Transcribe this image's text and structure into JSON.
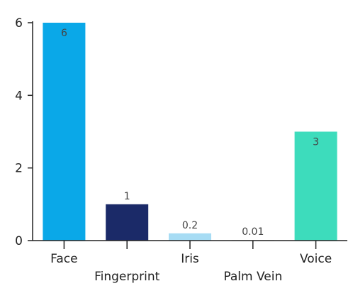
{
  "chart_data": {
    "type": "bar",
    "categories": [
      "Face",
      "Fingerprint",
      "Iris",
      "Palm Vein",
      "Voice"
    ],
    "values": [
      6,
      1,
      0.2,
      0.01,
      3
    ],
    "data_labels": [
      "6",
      "1",
      "0.2",
      "0.01",
      "3"
    ],
    "bar_colors": [
      "#0aa8e8",
      "#1b2a68",
      "#a7dcf4",
      "#ebebeb",
      "#3ddcbc"
    ],
    "category_label_rows": [
      "top",
      "bottom",
      "top",
      "bottom",
      "top"
    ],
    "ylim": [
      0,
      6
    ],
    "yticks": [
      0,
      2,
      4,
      6
    ],
    "ytick_labels": [
      "0",
      "2",
      "4",
      "6"
    ],
    "grid": false,
    "legend": "none",
    "title": "",
    "xlabel": "",
    "ylabel": ""
  }
}
